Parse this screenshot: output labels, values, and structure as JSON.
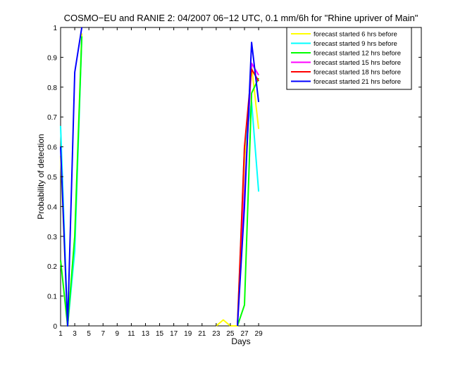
{
  "chart_data": {
    "type": "line",
    "title": "COSMO−EU and RANIE 2: 04/2007 06−12 UTC, 0.1 mm/6h for \"Rhine upriver of Main\"",
    "xlabel": "Days",
    "ylabel": "Probability of detection",
    "xlim": [
      1,
      52
    ],
    "ylim": [
      0,
      1
    ],
    "xticks": [
      1,
      3,
      5,
      7,
      9,
      11,
      13,
      15,
      17,
      19,
      21,
      23,
      25,
      27,
      29
    ],
    "xtick_labels": [
      "1",
      "3",
      "5",
      "7",
      "9",
      "11",
      "13",
      "15",
      "17",
      "19",
      "21",
      "23",
      "25",
      "27",
      "29"
    ],
    "yticks": [
      0,
      0.1,
      0.2,
      0.3,
      0.4,
      0.5,
      0.6,
      0.7,
      0.8,
      0.9,
      1
    ],
    "ytick_labels": [
      "0",
      "0.1",
      "0.2",
      "0.3",
      "0.4",
      "0.5",
      "0.6",
      "0.7",
      "0.8",
      "0.9",
      "1"
    ],
    "grid": false,
    "legend_position": "top-right",
    "series": [
      {
        "name": "forecast started 6 hrs before",
        "color": "#ffff00",
        "points": [
          [
            1,
            0.57
          ],
          [
            2,
            0
          ],
          [
            3,
            0.3
          ],
          [
            4,
            0.98
          ],
          [
            null,
            null
          ],
          [
            11,
            0
          ],
          [
            null,
            null
          ],
          [
            19,
            0
          ],
          [
            null,
            null
          ],
          [
            23,
            0
          ],
          [
            24,
            0.02
          ],
          [
            25,
            0
          ],
          [
            26,
            0
          ],
          [
            27,
            0.55
          ],
          [
            28,
            0.87
          ],
          [
            29,
            0.66
          ]
        ]
      },
      {
        "name": "forecast started 9 hrs before",
        "color": "#00ffff",
        "points": [
          [
            1,
            0.67
          ],
          [
            2,
            0
          ],
          [
            3,
            0.25
          ],
          [
            4,
            0.97
          ],
          [
            null,
            null
          ],
          [
            26,
            0
          ],
          [
            27,
            0.6
          ],
          [
            28,
            0.75
          ],
          [
            29,
            0.45
          ]
        ]
      },
      {
        "name": "forecast started 12 hrs before",
        "color": "#00ff00",
        "points": [
          [
            1,
            0.22
          ],
          [
            2,
            0
          ],
          [
            3,
            0.3
          ],
          [
            4,
            0.97
          ],
          [
            null,
            null
          ],
          [
            26,
            0
          ],
          [
            27,
            0.07
          ],
          [
            28,
            0.78
          ],
          [
            29,
            0.83
          ]
        ]
      },
      {
        "name": "forecast started 15 hrs before",
        "color": "#ff00ff",
        "points": [
          [
            26,
            0
          ],
          [
            27,
            0.45
          ],
          [
            28,
            0.88
          ],
          [
            29,
            0.84
          ]
        ]
      },
      {
        "name": "forecast started 18 hrs before",
        "color": "#ff0000",
        "points": [
          [
            26,
            0
          ],
          [
            27,
            0.6
          ],
          [
            28,
            0.86
          ],
          [
            29,
            0.82
          ]
        ]
      },
      {
        "name": "forecast started 21 hrs before",
        "color": "#0000ff",
        "points": [
          [
            1,
            0.6
          ],
          [
            2,
            0
          ],
          [
            3,
            0.85
          ],
          [
            4,
            1.0
          ],
          [
            null,
            null
          ],
          [
            26,
            0
          ],
          [
            27,
            0.4
          ],
          [
            28,
            0.95
          ],
          [
            29,
            0.75
          ],
          [
            null,
            null
          ],
          [
            31,
            0
          ]
        ]
      }
    ]
  }
}
